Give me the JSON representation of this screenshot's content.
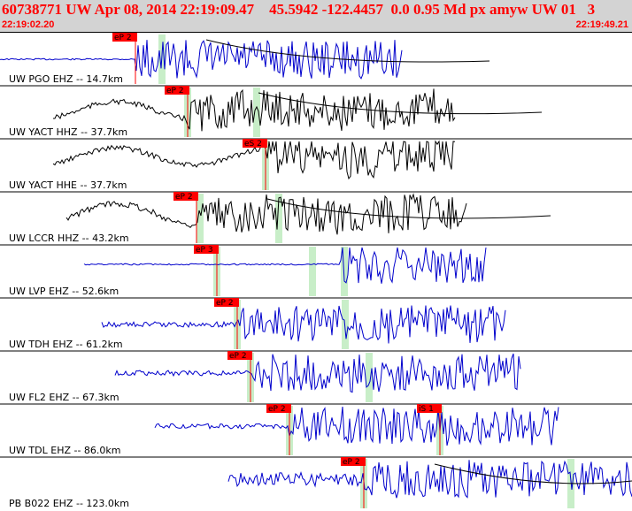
{
  "header": {
    "event_line": "60738771 UW Apr 08, 2014 22:19:09.47    45.5942 -122.4457  0.0 0.95 Md px amyw UW 01   3",
    "start_time": "22:19:02.20",
    "end_time": "22:19:49.21"
  },
  "colors": {
    "header_bg": "#d3d3d3",
    "header_text": "#ff0000",
    "trace_vertical": "#0000cc",
    "trace_horizontal": "#000000",
    "pick_flag": "#ff0000",
    "pick_marker": "#c8eec8"
  },
  "panels": [
    {
      "label": "UW PGO EHZ -- 14.7km",
      "color": "blue",
      "picks": [
        {
          "text": "eP 2"
        }
      ]
    },
    {
      "label": "UW YACT HHZ -- 37.7km",
      "color": "black",
      "picks": [
        {
          "text": "eP 2"
        }
      ]
    },
    {
      "label": "UW YACT HHE -- 37.7km",
      "color": "black",
      "picks": [
        {
          "text": "eS 2"
        }
      ]
    },
    {
      "label": "UW LCCR HHZ -- 43.2km",
      "color": "black",
      "picks": [
        {
          "text": "eP 2"
        }
      ]
    },
    {
      "label": "UW LVP EHZ -- 52.6km",
      "color": "blue",
      "picks": [
        {
          "text": "eP 3"
        }
      ]
    },
    {
      "label": "UW TDH EHZ -- 61.2km",
      "color": "blue",
      "picks": [
        {
          "text": "eP 2"
        }
      ]
    },
    {
      "label": "UW FL2 EHZ -- 67.3km",
      "color": "blue",
      "picks": [
        {
          "text": "eP 2"
        }
      ]
    },
    {
      "label": "UW TDL EHZ -- 86.0km",
      "color": "blue",
      "picks": [
        {
          "text": "eP 2"
        },
        {
          "text": "iS 1"
        }
      ]
    },
    {
      "label": "PB B022 EHZ -- 123.0km",
      "color": "blue",
      "picks": [
        {
          "text": "eP 2"
        }
      ]
    }
  ]
}
